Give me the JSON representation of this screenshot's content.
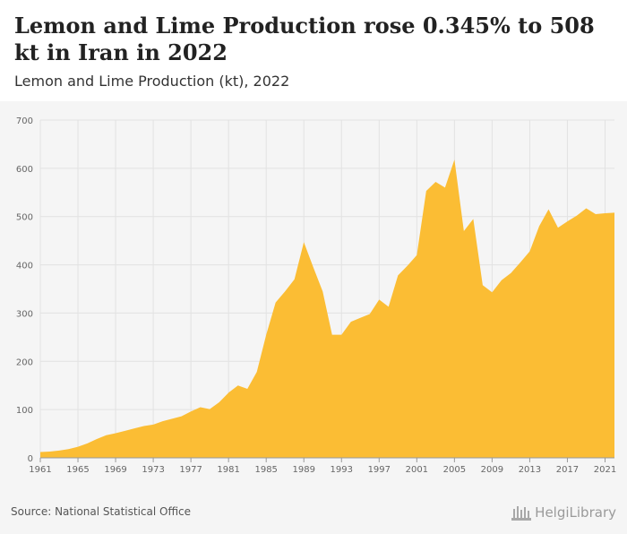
{
  "header": {
    "title": "Lemon and Lime Production rose 0.345% to 508 kt in Iran in 2022",
    "subtitle": "Lemon and Lime Production (kt), 2022"
  },
  "footer": {
    "source": "Source: National Statistical Office",
    "brand": "HelgiLibrary"
  },
  "colors": {
    "area": "#fbbd34",
    "grid": "#e2e2e2",
    "tick_text": "#666666"
  },
  "chart_data": {
    "type": "area",
    "title": "Lemon and Lime Production rose 0.345% to 508 kt in Iran in 2022",
    "subtitle": "Lemon and Lime Production (kt), 2022",
    "xlabel": "",
    "ylabel": "",
    "xlim": [
      1961,
      2022
    ],
    "ylim": [
      0,
      700
    ],
    "yticks": [
      0,
      100,
      200,
      300,
      400,
      500,
      600,
      700
    ],
    "xticks": [
      1961,
      1965,
      1969,
      1973,
      1977,
      1981,
      1985,
      1989,
      1993,
      1997,
      2001,
      2005,
      2009,
      2013,
      2017,
      2021
    ],
    "grid": true,
    "legend": "none",
    "series": [
      {
        "x": [
          1961,
          1962,
          1963,
          1964,
          1965,
          1966,
          1967,
          1968,
          1969,
          1970,
          1971,
          1972,
          1973,
          1974,
          1975,
          1976,
          1977,
          1978,
          1979,
          1980,
          1981,
          1982,
          1983,
          1984,
          1985,
          1986,
          1987,
          1988,
          1989,
          1990,
          1991,
          1992,
          1993,
          1994,
          1995,
          1996,
          1997,
          1998,
          1999,
          2000,
          2001,
          2002,
          2003,
          2004,
          2005,
          2006,
          2007,
          2008,
          2009,
          2010,
          2011,
          2012,
          2013,
          2014,
          2015,
          2016,
          2017,
          2018,
          2019,
          2020,
          2021,
          2022
        ],
        "values": [
          12,
          13,
          15,
          18,
          23,
          30,
          39,
          47,
          51,
          56,
          61,
          66,
          69,
          76,
          81,
          86,
          96,
          105,
          101,
          115,
          135,
          150,
          143,
          178,
          255,
          322,
          345,
          370,
          447,
          395,
          345,
          255,
          255,
          282,
          290,
          298,
          328,
          313,
          378,
          398,
          420,
          553,
          572,
          560,
          618,
          470,
          495,
          358,
          343,
          368,
          383,
          405,
          428,
          480,
          515,
          477,
          490,
          502,
          517,
          505,
          507,
          508
        ]
      }
    ]
  }
}
